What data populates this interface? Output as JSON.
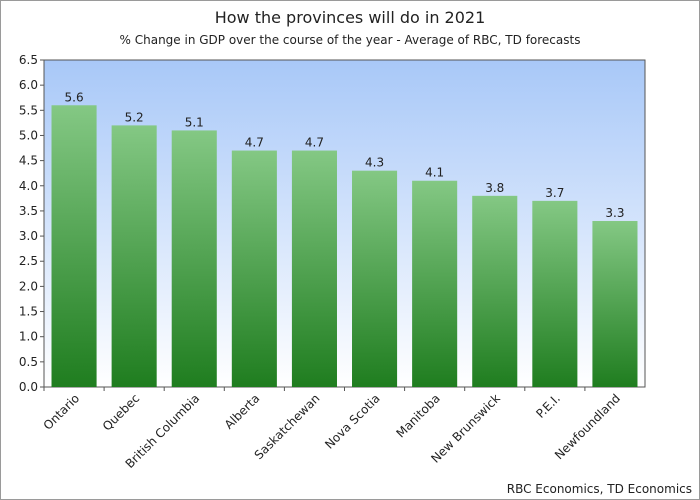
{
  "chart_data": {
    "type": "bar",
    "title": "How the provinces will do in 2021",
    "subtitle": "% Change in GDP over the course of the year - Average of RBC, TD forecasts",
    "categories": [
      "Ontario",
      "Quebec",
      "British Columbia",
      "Alberta",
      "Saskatchewan",
      "Nova Scotia",
      "Manitoba",
      "New Brunswick",
      "P.E.I.",
      "Newfoundland"
    ],
    "values": [
      5.6,
      5.2,
      5.1,
      4.7,
      4.7,
      4.3,
      4.1,
      3.8,
      3.7,
      3.3
    ],
    "data_labels": [
      "5.6",
      "5.2",
      "5.1",
      "4.7",
      "4.7",
      "4.3",
      "4.1",
      "3.8",
      "3.7",
      "3.3"
    ],
    "ylim": [
      0,
      6.5
    ],
    "yticks": [
      "0.0",
      "0.5",
      "1.0",
      "1.5",
      "2.0",
      "2.5",
      "3.0",
      "3.5",
      "4.0",
      "4.5",
      "5.0",
      "5.5",
      "6.0",
      "6.5"
    ],
    "xlabel": "",
    "ylabel": "",
    "grid": false,
    "legend": "none",
    "colors": {
      "bar_top": "#84c884",
      "bar_bottom": "#1f7d1f",
      "plot_bg_top": "#a8c8f8",
      "plot_bg_bottom": "#ffffff"
    }
  },
  "source": "RBC Economics, TD Economics"
}
